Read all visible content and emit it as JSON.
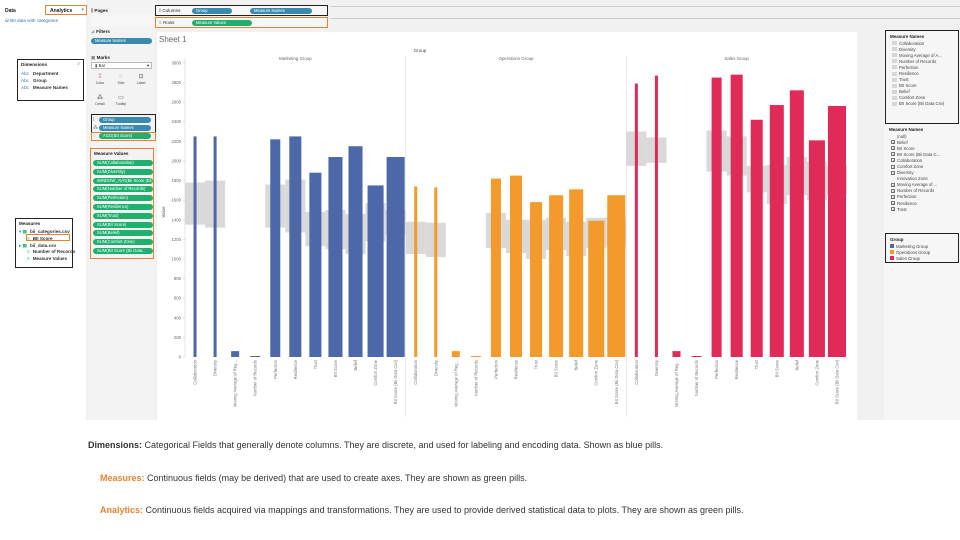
{
  "left_panel": {
    "tab_data": "Data",
    "tab_analytics": "Analytics",
    "datasource": "BII data with categories",
    "dimensions_title": "Dimensions",
    "dimensions": [
      {
        "type": "Abc",
        "label": "Department"
      },
      {
        "type": "Abc",
        "label": "Group"
      },
      {
        "type": "Abc",
        "label": "Measure Names"
      }
    ],
    "measures_title": "Measures",
    "measures": [
      {
        "label": "bii_categories.csv"
      },
      {
        "label": "BII Score"
      },
      {
        "label": "bii_data.csv"
      },
      {
        "label": "Number of Records"
      },
      {
        "label": "Measure Values"
      }
    ]
  },
  "mid_panel": {
    "pages_title": "Pages",
    "filters_title": "Filters",
    "filter_pill": "Measure Names",
    "marks_title": "Marks",
    "mark_type": "Bar",
    "mark_buttons": [
      "Color",
      "Size",
      "Label",
      "Detail",
      "Tooltip"
    ],
    "mark_pills": [
      "Group",
      "Measure Names",
      "AGG(BII Score)"
    ],
    "measure_values_title": "Measure Values",
    "measure_values": [
      "SUM(Collaboration)",
      "SUM(Diversity)",
      "WINDOW_AVG(Bii Score (Bii Dat...",
      "SUM(Number of Records)",
      "SUM(Perfection)",
      "SUM(Resilience)",
      "SUM(Trust)",
      "SUM(BII Score)",
      "SUM(Belief)",
      "SUM(Comfort Zone)",
      "SUM(BII Score (Bii Data..."
    ]
  },
  "shelves": {
    "columns_label": "Columns",
    "rows_label": "Rows",
    "columns_pills": [
      "Group",
      "Measure Names"
    ],
    "rows_pill": "Measure Values"
  },
  "sheet_title": "Sheet 1",
  "chart_data": {
    "type": "bar",
    "top_header": "Group",
    "groups": [
      "Marketing Group",
      "Operations Group",
      "Sales Group"
    ],
    "categories": [
      "Collaboration",
      "Diversity",
      "Moving Average of Reg...",
      "Number of Records",
      "Perfection",
      "Resilience",
      "Trust",
      "BII Score",
      "Belief",
      "Comfort Zone",
      "BII Score (Bii Data Csv)"
    ],
    "ylabel": "Value",
    "yticks": [
      0,
      200,
      400,
      600,
      800,
      1000,
      1200,
      1400,
      1600,
      1800,
      2000,
      2200,
      2400,
      2600,
      2800,
      3000
    ],
    "ylim": [
      0,
      3050
    ],
    "series": [
      {
        "name": "Marketing Group",
        "color": "#4c68a8",
        "values": [
          2250,
          2250,
          60,
          10,
          2220,
          2250,
          1880,
          2040,
          2150,
          1750,
          2040
        ],
        "widths": [
          0.15,
          0.15,
          0.4,
          0.5,
          0.5,
          0.6,
          0.6,
          0.7,
          0.7,
          0.8,
          0.9
        ]
      },
      {
        "name": "Operations Group",
        "color": "#f39a2c",
        "values": [
          1740,
          1730,
          60,
          10,
          1820,
          1850,
          1580,
          1650,
          1710,
          1390,
          1650
        ],
        "widths": [
          0.15,
          0.15,
          0.4,
          0.5,
          0.5,
          0.6,
          0.6,
          0.7,
          0.7,
          0.8,
          0.9
        ]
      },
      {
        "name": "Sales Group",
        "color": "#e02a58",
        "values": [
          2790,
          2870,
          60,
          10,
          2850,
          2880,
          2420,
          2570,
          2720,
          2210,
          2560
        ],
        "widths": [
          0.15,
          0.15,
          0.4,
          0.5,
          0.5,
          0.6,
          0.6,
          0.7,
          0.7,
          0.8,
          0.9
        ]
      }
    ],
    "bands": [
      [
        [
          1350,
          1780
        ],
        [
          1320,
          1800
        ],
        [
          null,
          null
        ],
        [
          null,
          null
        ],
        [
          1320,
          1760
        ],
        [
          1270,
          1810
        ],
        [
          1130,
          1480
        ],
        [
          1100,
          1500
        ],
        [
          1050,
          1460
        ],
        [
          1180,
          1570
        ],
        [
          1250,
          1500
        ]
      ],
      [
        [
          1050,
          1380
        ],
        [
          1020,
          1370
        ],
        [
          null,
          null
        ],
        [
          null,
          null
        ],
        [
          1110,
          1470
        ],
        [
          1060,
          1400
        ],
        [
          1000,
          1400
        ],
        [
          1090,
          1420
        ],
        [
          1030,
          1380
        ],
        [
          1110,
          1420
        ],
        [
          1120,
          1430
        ]
      ],
      [
        [
          1950,
          2300
        ],
        [
          1980,
          2240
        ],
        [
          null,
          null
        ],
        [
          null,
          null
        ],
        [
          1890,
          2310
        ],
        [
          1850,
          2250
        ],
        [
          1680,
          1950
        ],
        [
          1560,
          1960
        ],
        [
          1650,
          2040
        ],
        [
          1600,
          1990
        ],
        [
          1650,
          1950
        ]
      ]
    ]
  },
  "right_panel": {
    "measure_names_title": "Measure Names",
    "measure_names": [
      "Collaboration",
      "Diversity",
      "Moving Average of A...",
      "Number of Records",
      "Perfection",
      "Resilience",
      "Trust",
      "BII Score",
      "Belief",
      "Comfort Zone",
      "BII Score (Bii Data Csv)"
    ],
    "measure_names2_title": "Measure Names",
    "measure_names2": [
      {
        "label": "(null)",
        "checked": false
      },
      {
        "label": "Belief",
        "checked": true
      },
      {
        "label": "BII Score",
        "checked": true
      },
      {
        "label": "BII Score (Bii Data C...",
        "checked": true
      },
      {
        "label": "Collaboration",
        "checked": true
      },
      {
        "label": "Comfort Zone",
        "checked": true
      },
      {
        "label": "Diversity",
        "checked": true
      },
      {
        "label": "Innovation Zone",
        "checked": false
      },
      {
        "label": "Moving Average of ...",
        "checked": true
      },
      {
        "label": "Number of Records",
        "checked": true
      },
      {
        "label": "Perfection",
        "checked": true
      },
      {
        "label": "Resilience",
        "checked": true
      },
      {
        "label": "Trust",
        "checked": true
      }
    ],
    "group_title": "Group",
    "group_legend": [
      {
        "label": "Marketing Group",
        "color": "#4c68a8"
      },
      {
        "label": "Operations Group",
        "color": "#f39a2c"
      },
      {
        "label": "Sales Group",
        "color": "#e02a58"
      }
    ]
  },
  "captions": {
    "dim_term": "Dimensions:",
    "dim_text": " Categorical Fields that generally denote columns. They are discrete, and used for labeling and encoding data. Shown as blue pills.",
    "mea_term": "Measures:",
    "mea_text": " Continuous fields (may be derived) that are used to create axes. They are shown as green pills.",
    "ana_term": "Analytics:",
    "ana_text": " Continuous fields acquired via mappings and transformations. They are used to provide derived statistical data to plots. They are shown as green pills."
  }
}
